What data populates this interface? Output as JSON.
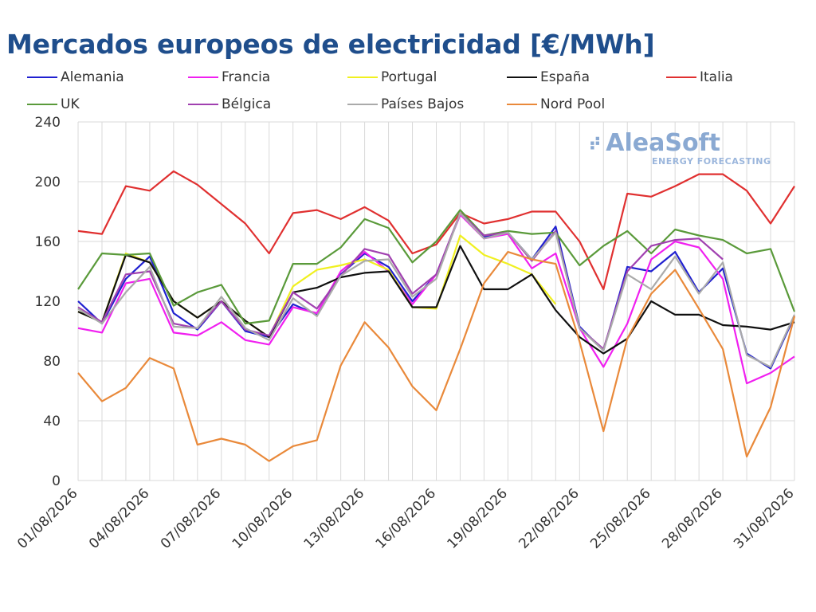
{
  "chart_data": {
    "type": "line",
    "title": "Mercados europeos de electricidad [€/MWh]",
    "xlabel": "",
    "ylabel": "",
    "ylim": [
      0,
      240
    ],
    "yticks": [
      "0",
      "40",
      "80",
      "120",
      "160",
      "200",
      "240"
    ],
    "grid": true,
    "legend_position": "top",
    "x": [
      "01/08/2026",
      "02/08/2026",
      "03/08/2026",
      "04/08/2026",
      "05/08/2026",
      "06/08/2026",
      "07/08/2026",
      "08/08/2026",
      "09/08/2026",
      "10/08/2026",
      "11/08/2026",
      "12/08/2026",
      "13/08/2026",
      "14/08/2026",
      "15/08/2026",
      "16/08/2026",
      "17/08/2026",
      "18/08/2026",
      "19/08/2026",
      "20/08/2026",
      "21/08/2026",
      "22/08/2026",
      "23/08/2026",
      "24/08/2026",
      "25/08/2026",
      "26/08/2026",
      "27/08/2026",
      "28/08/2026",
      "29/08/2026",
      "30/08/2026",
      "31/08/2026"
    ],
    "xticks": [
      "01/08/2026",
      "04/08/2026",
      "07/08/2026",
      "10/08/2026",
      "13/08/2026",
      "16/08/2026",
      "19/08/2026",
      "22/08/2026",
      "25/08/2026",
      "28/08/2026",
      "31/08/2026"
    ],
    "series": [
      {
        "name": "Alemania",
        "color": "#2020d0",
        "values": [
          120,
          105,
          135,
          150,
          112,
          101,
          120,
          100,
          96,
          118,
          111,
          138,
          152,
          143,
          120,
          138,
          178,
          163,
          166,
          148,
          170,
          103,
          87,
          143,
          140,
          153,
          126,
          142,
          85,
          75,
          110
        ]
      },
      {
        "name": "Francia",
        "color": "#f020f0",
        "values": [
          102,
          99,
          132,
          135,
          99,
          97,
          106,
          94,
          91,
          116,
          112,
          140,
          153,
          140,
          118,
          138,
          178,
          162,
          165,
          142,
          152,
          102,
          76,
          105,
          148,
          160,
          156,
          135,
          65,
          72,
          83
        ]
      },
      {
        "name": "Portugal",
        "color": "#f0f020",
        "values": [
          113,
          106,
          152,
          146,
          120,
          109,
          120,
          107,
          96,
          130,
          141,
          144,
          148,
          141,
          116,
          115,
          164,
          151,
          145,
          138,
          118,
          null,
          null,
          null,
          null,
          null,
          null,
          null,
          null,
          null,
          null
        ]
      },
      {
        "name": "España",
        "color": "#101010",
        "values": [
          113,
          106,
          151,
          146,
          120,
          109,
          120,
          107,
          96,
          126,
          129,
          136,
          139,
          140,
          116,
          116,
          157,
          128,
          128,
          138,
          114,
          96,
          85,
          95,
          120,
          111,
          111,
          104,
          103,
          101,
          106
        ]
      },
      {
        "name": "Italia",
        "color": "#e03030",
        "values": [
          167,
          165,
          197,
          194,
          207,
          198,
          185,
          172,
          152,
          179,
          181,
          175,
          183,
          174,
          152,
          158,
          179,
          172,
          175,
          180,
          180,
          160,
          128,
          192,
          190,
          197,
          205,
          205,
          194,
          172,
          197
        ]
      },
      {
        "name": "UK",
        "color": "#5a9a3a",
        "values": [
          128,
          152,
          151,
          152,
          117,
          126,
          131,
          105,
          107,
          145,
          145,
          156,
          175,
          169,
          146,
          160,
          181,
          164,
          167,
          165,
          166,
          144,
          157,
          167,
          152,
          168,
          164,
          161,
          152,
          155,
          113
        ]
      },
      {
        "name": "Bélgica",
        "color": "#a040b0",
        "values": [
          116,
          106,
          138,
          140,
          105,
          102,
          120,
          101,
          97,
          126,
          115,
          137,
          155,
          151,
          125,
          138,
          179,
          164,
          166,
          147,
          167,
          102,
          88,
          140,
          157,
          161,
          162,
          148,
          null,
          null,
          null
        ]
      },
      {
        "name": "Países Bajos",
        "color": "#aaaaaa",
        "values": [
          115,
          105,
          126,
          143,
          103,
          102,
          123,
          102,
          94,
          122,
          110,
          137,
          147,
          148,
          123,
          135,
          179,
          162,
          166,
          148,
          166,
          102,
          87,
          138,
          128,
          150,
          125,
          146,
          84,
          76,
          111
        ]
      },
      {
        "name": "Nord Pool",
        "color": "#e9893a",
        "values": [
          72,
          53,
          62,
          82,
          75,
          24,
          28,
          24,
          13,
          23,
          27,
          77,
          106,
          89,
          63,
          47,
          88,
          132,
          153,
          148,
          145,
          93,
          33,
          95,
          125,
          141,
          115,
          88,
          16,
          49,
          110
        ]
      }
    ]
  },
  "legend": [
    {
      "label": "Alemania",
      "color": "#2020d0"
    },
    {
      "label": "Francia",
      "color": "#f020f0"
    },
    {
      "label": "Portugal",
      "color": "#f0f020"
    },
    {
      "label": "España",
      "color": "#101010"
    },
    {
      "label": "Italia",
      "color": "#e03030"
    },
    {
      "label": "UK",
      "color": "#5a9a3a"
    },
    {
      "label": "Bélgica",
      "color": "#a040b0"
    },
    {
      "label": "Países Bajos",
      "color": "#aaaaaa"
    },
    {
      "label": "Nord Pool",
      "color": "#e9893a"
    }
  ],
  "watermark": {
    "name": "AleaSoft",
    "subtitle": "ENERGY FORECASTING"
  }
}
